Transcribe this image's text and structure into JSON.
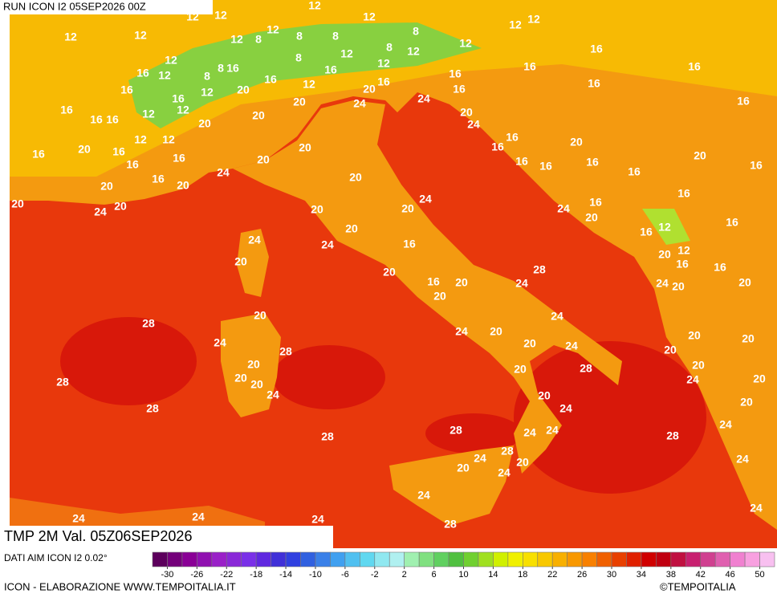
{
  "header": {
    "run": "RUN ICON I2 05SEP2026 00Z"
  },
  "map": {
    "contour_levels": [
      "8",
      "12",
      "16",
      "20",
      "24",
      "28"
    ]
  },
  "footer": {
    "field": "TMP 2M Val. 05Z06SEP2026",
    "source": "DATI AIM ICON I2 0.02°",
    "credit": "ICON - ELABORAZIONE WWW.TEMPOITALIA.IT",
    "copyright": "©TEMPOITALIA"
  },
  "colorbar": {
    "range": [
      -32,
      52
    ],
    "ticks": [
      -30,
      -26,
      -22,
      -18,
      -14,
      -10,
      -6,
      -2,
      2,
      6,
      10,
      14,
      18,
      22,
      26,
      30,
      34,
      38,
      42,
      46,
      50
    ],
    "colors": [
      "#5c005c",
      "#74007a",
      "#8a0096",
      "#9010b0",
      "#9a20c8",
      "#8a28d8",
      "#7a30e8",
      "#6028e0",
      "#4030d8",
      "#3040e0",
      "#3060e0",
      "#3a80e8",
      "#40a0f0",
      "#50c0f0",
      "#60d8f0",
      "#90e8f0",
      "#b0f0f0",
      "#a0f0b0",
      "#80e080",
      "#60d060",
      "#50c040",
      "#70d030",
      "#a0e020",
      "#d0f000",
      "#f0f000",
      "#f8e000",
      "#f8c800",
      "#f8b000",
      "#f89800",
      "#f88000",
      "#f06000",
      "#e84000",
      "#e02000",
      "#d00000",
      "#c00010",
      "#c01040",
      "#c82070",
      "#d04090",
      "#e060b0",
      "#f080d0",
      "#f8a0e0",
      "#f8c0f0"
    ]
  }
}
